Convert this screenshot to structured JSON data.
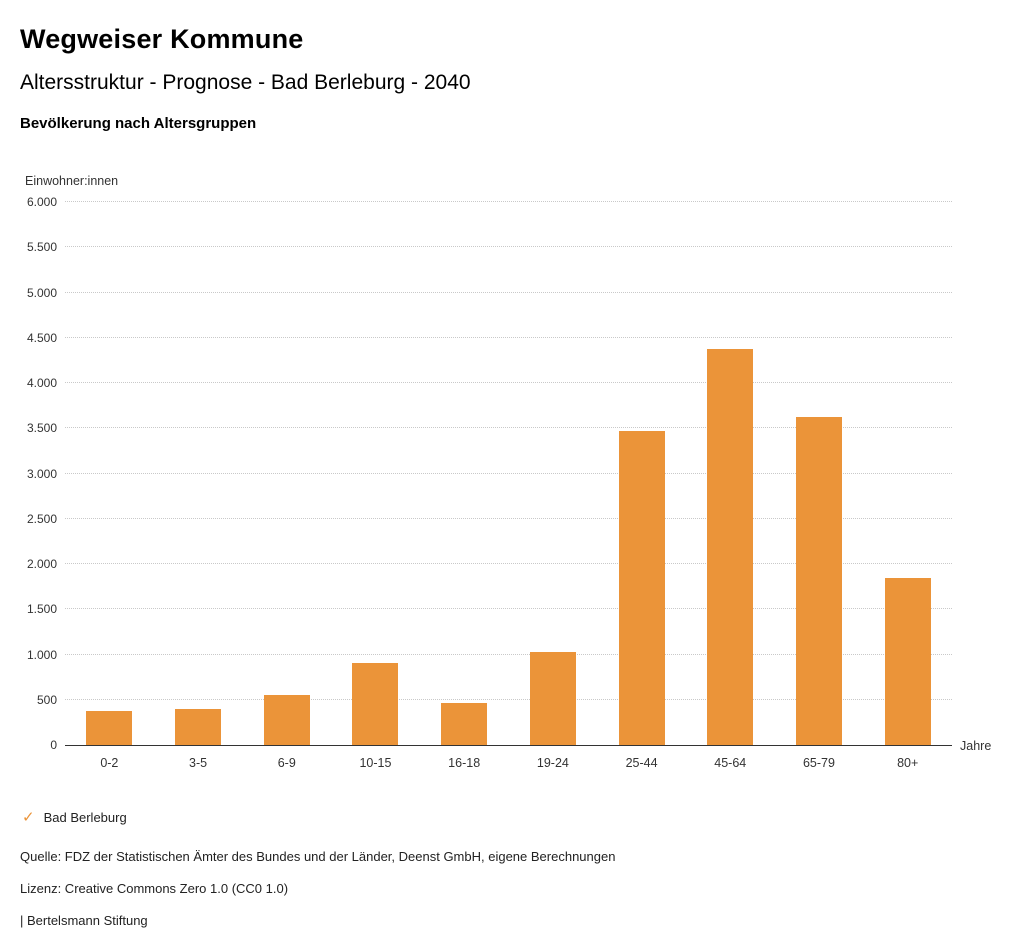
{
  "header": {
    "title": "Wegweiser Kommune",
    "subtitle": "Altersstruktur - Prognose - Bad Berleburg - 2040",
    "section_heading": "Bevölkerung nach Altersgruppen"
  },
  "chart_data": {
    "type": "bar",
    "title": "Bevölkerung nach Altersgruppen",
    "categories": [
      "0-2",
      "3-5",
      "6-9",
      "10-15",
      "16-18",
      "19-24",
      "25-44",
      "45-64",
      "65-79",
      "80+"
    ],
    "series": [
      {
        "name": "Bad Berleburg",
        "values": [
          375,
          395,
          550,
          905,
          460,
          1025,
          3475,
          4380,
          3630,
          1845
        ]
      }
    ],
    "ylabel": "Einwohner:innen",
    "xlabel": "Jahre",
    "ylim": [
      0,
      6000
    ],
    "ytick_step": 500,
    "ytick_labels": [
      "0",
      "500",
      "1.000",
      "1.500",
      "2.000",
      "2.500",
      "3.000",
      "3.500",
      "4.000",
      "4.500",
      "5.000",
      "5.500",
      "6.000"
    ],
    "grid": "horizontal-dotted",
    "legend_position": "bottom-left",
    "bar_color": "#EB9439",
    "axis_color": "#333333",
    "gridline_color": "#c9c9c9"
  },
  "legend": {
    "marker": "check-icon",
    "label": "Bad Berleburg",
    "color": "#EB9439"
  },
  "footer": {
    "source": "Quelle: FDZ der Statistischen Ämter des Bundes und der Länder, Deenst GmbH, eigene Berechnungen",
    "license": "Lizenz: Creative Commons Zero 1.0 (CC0 1.0)",
    "attribution": "| Bertelsmann Stiftung"
  }
}
